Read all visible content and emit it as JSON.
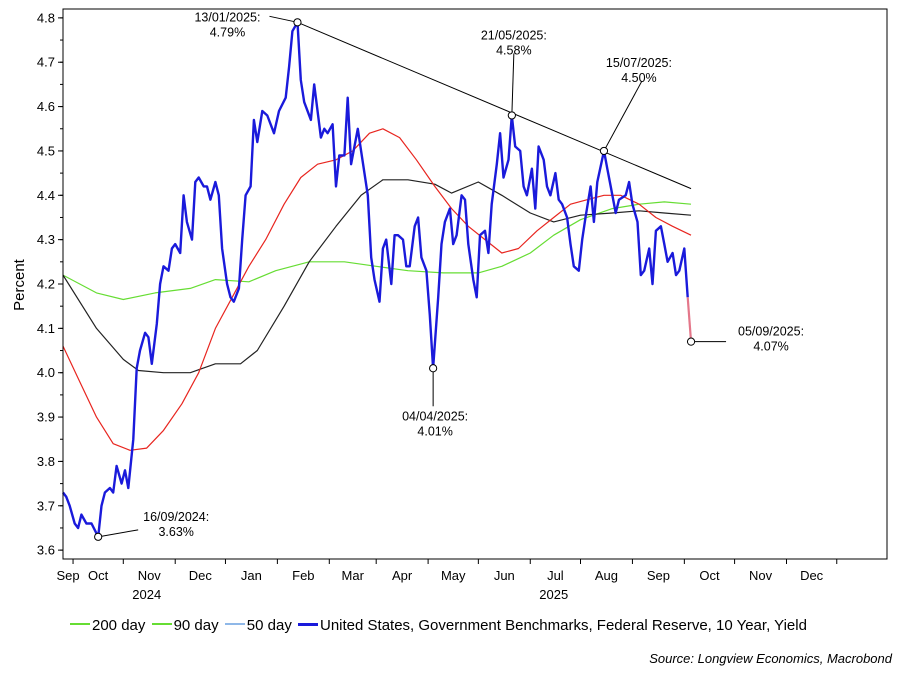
{
  "chart_data": {
    "type": "line",
    "title": "",
    "ylabel": "Percent",
    "ylim": [
      3.58,
      4.82
    ],
    "yticks": [
      "3.6",
      "3.7",
      "3.8",
      "3.9",
      "4.0",
      "4.1",
      "4.2",
      "4.3",
      "4.4",
      "4.5",
      "4.6",
      "4.7",
      "4.8"
    ],
    "xlim": [
      "2024-08-26",
      "2025-12-31"
    ],
    "month_labels": [
      "Sep",
      "Oct",
      "Nov",
      "Dec",
      "Jan",
      "Feb",
      "Mar",
      "Apr",
      "May",
      "Jun",
      "Jul",
      "Aug",
      "Sep",
      "Oct",
      "Nov",
      "Dec"
    ],
    "year_labels": [
      {
        "label": "2024",
        "center": "2024-10-15"
      },
      {
        "label": "2025",
        "center": "2025-06-15"
      }
    ],
    "grid": false,
    "legend_position": "bottom",
    "legend": [
      {
        "label": "200 day",
        "color": "#66dd33"
      },
      {
        "label": "90 day",
        "color": "#222222"
      },
      {
        "label": "50 day",
        "color": "#e8251f"
      },
      {
        "label": "United States, Government Benchmarks, Federal Reserve, 10 Year, Yield",
        "color": "#1a1adb"
      }
    ],
    "source": "Source: Longview Economics, Macrobond",
    "series": [
      {
        "key": "ma200",
        "color": "#66dd33",
        "width": 1.2,
        "points": [
          [
            "2024-08-26",
            4.22
          ],
          [
            "2024-09-15",
            4.18
          ],
          [
            "2024-10-01",
            4.165
          ],
          [
            "2024-10-20",
            4.18
          ],
          [
            "2024-11-10",
            4.19
          ],
          [
            "2024-11-25",
            4.21
          ],
          [
            "2024-12-15",
            4.205
          ],
          [
            "2024-12-31",
            4.23
          ],
          [
            "2025-01-20",
            4.25
          ],
          [
            "2025-02-10",
            4.25
          ],
          [
            "2025-03-01",
            4.24
          ],
          [
            "2025-03-20",
            4.23
          ],
          [
            "2025-04-10",
            4.225
          ],
          [
            "2025-05-01",
            4.225
          ],
          [
            "2025-05-15",
            4.24
          ],
          [
            "2025-06-01",
            4.27
          ],
          [
            "2025-06-15",
            4.31
          ],
          [
            "2025-07-01",
            4.345
          ],
          [
            "2025-07-20",
            4.37
          ],
          [
            "2025-08-05",
            4.38
          ],
          [
            "2025-08-20",
            4.385
          ],
          [
            "2025-09-05",
            4.38
          ]
        ]
      },
      {
        "key": "ma90",
        "color": "#222222",
        "width": 1.2,
        "points": [
          [
            "2024-08-26",
            4.22
          ],
          [
            "2024-09-15",
            4.1
          ],
          [
            "2024-10-01",
            4.03
          ],
          [
            "2024-10-10",
            4.005
          ],
          [
            "2024-10-25",
            4.0
          ],
          [
            "2024-11-10",
            4.0
          ],
          [
            "2024-11-25",
            4.02
          ],
          [
            "2024-12-10",
            4.02
          ],
          [
            "2024-12-20",
            4.05
          ],
          [
            "2025-01-05",
            4.15
          ],
          [
            "2025-01-20",
            4.25
          ],
          [
            "2025-02-05",
            4.33
          ],
          [
            "2025-02-20",
            4.4
          ],
          [
            "2025-03-05",
            4.435
          ],
          [
            "2025-03-20",
            4.435
          ],
          [
            "2025-04-05",
            4.425
          ],
          [
            "2025-04-15",
            4.405
          ],
          [
            "2025-05-01",
            4.43
          ],
          [
            "2025-05-15",
            4.4
          ],
          [
            "2025-06-01",
            4.36
          ],
          [
            "2025-06-15",
            4.34
          ],
          [
            "2025-07-01",
            4.355
          ],
          [
            "2025-07-20",
            4.36
          ],
          [
            "2025-08-05",
            4.365
          ],
          [
            "2025-08-20",
            4.36
          ],
          [
            "2025-09-05",
            4.355
          ]
        ]
      },
      {
        "key": "ma50",
        "color": "#e8251f",
        "width": 1.2,
        "points": [
          [
            "2024-08-26",
            4.06
          ],
          [
            "2024-09-05",
            3.98
          ],
          [
            "2024-09-15",
            3.9
          ],
          [
            "2024-09-25",
            3.84
          ],
          [
            "2024-10-05",
            3.825
          ],
          [
            "2024-10-15",
            3.83
          ],
          [
            "2024-10-25",
            3.87
          ],
          [
            "2024-11-05",
            3.93
          ],
          [
            "2024-11-15",
            4.0
          ],
          [
            "2024-11-25",
            4.1
          ],
          [
            "2024-12-05",
            4.17
          ],
          [
            "2024-12-15",
            4.24
          ],
          [
            "2024-12-25",
            4.3
          ],
          [
            "2025-01-05",
            4.38
          ],
          [
            "2025-01-15",
            4.44
          ],
          [
            "2025-01-25",
            4.47
          ],
          [
            "2025-02-05",
            4.48
          ],
          [
            "2025-02-15",
            4.5
          ],
          [
            "2025-02-25",
            4.54
          ],
          [
            "2025-03-05",
            4.55
          ],
          [
            "2025-03-15",
            4.53
          ],
          [
            "2025-03-25",
            4.48
          ],
          [
            "2025-04-05",
            4.42
          ],
          [
            "2025-04-15",
            4.37
          ],
          [
            "2025-04-25",
            4.33
          ],
          [
            "2025-05-05",
            4.3
          ],
          [
            "2025-05-15",
            4.27
          ],
          [
            "2025-05-25",
            4.28
          ],
          [
            "2025-06-05",
            4.32
          ],
          [
            "2025-06-15",
            4.35
          ],
          [
            "2025-06-25",
            4.38
          ],
          [
            "2025-07-05",
            4.39
          ],
          [
            "2025-07-15",
            4.4
          ],
          [
            "2025-07-25",
            4.4
          ],
          [
            "2025-08-05",
            4.38
          ],
          [
            "2025-08-15",
            4.35
          ],
          [
            "2025-08-25",
            4.33
          ],
          [
            "2025-09-05",
            4.31
          ]
        ]
      },
      {
        "key": "yield",
        "color": "#1a1adb",
        "width": 2.4,
        "points": [
          [
            "2024-08-26",
            3.73
          ],
          [
            "2024-08-28",
            3.72
          ],
          [
            "2024-08-30",
            3.7
          ],
          [
            "2024-09-02",
            3.66
          ],
          [
            "2024-09-04",
            3.65
          ],
          [
            "2024-09-06",
            3.68
          ],
          [
            "2024-09-09",
            3.66
          ],
          [
            "2024-09-12",
            3.66
          ],
          [
            "2024-09-16",
            3.63
          ],
          [
            "2024-09-18",
            3.7
          ],
          [
            "2024-09-20",
            3.73
          ],
          [
            "2024-09-23",
            3.74
          ],
          [
            "2024-09-25",
            3.73
          ],
          [
            "2024-09-27",
            3.79
          ],
          [
            "2024-09-30",
            3.75
          ],
          [
            "2024-10-02",
            3.78
          ],
          [
            "2024-10-04",
            3.74
          ],
          [
            "2024-10-07",
            3.85
          ],
          [
            "2024-10-09",
            4.01
          ],
          [
            "2024-10-11",
            4.05
          ],
          [
            "2024-10-14",
            4.09
          ],
          [
            "2024-10-16",
            4.08
          ],
          [
            "2024-10-18",
            4.02
          ],
          [
            "2024-10-21",
            4.11
          ],
          [
            "2024-10-23",
            4.2
          ],
          [
            "2024-10-25",
            4.24
          ],
          [
            "2024-10-28",
            4.23
          ],
          [
            "2024-10-30",
            4.28
          ],
          [
            "2024-11-01",
            4.29
          ],
          [
            "2024-11-04",
            4.27
          ],
          [
            "2024-11-06",
            4.4
          ],
          [
            "2024-11-08",
            4.34
          ],
          [
            "2024-11-11",
            4.3
          ],
          [
            "2024-11-13",
            4.43
          ],
          [
            "2024-11-15",
            4.44
          ],
          [
            "2024-11-18",
            4.42
          ],
          [
            "2024-11-20",
            4.42
          ],
          [
            "2024-11-22",
            4.39
          ],
          [
            "2024-11-25",
            4.43
          ],
          [
            "2024-11-27",
            4.4
          ],
          [
            "2024-11-29",
            4.28
          ],
          [
            "2024-12-02",
            4.2
          ],
          [
            "2024-12-04",
            4.17
          ],
          [
            "2024-12-06",
            4.16
          ],
          [
            "2024-12-09",
            4.19
          ],
          [
            "2024-12-11",
            4.3
          ],
          [
            "2024-12-13",
            4.4
          ],
          [
            "2024-12-16",
            4.42
          ],
          [
            "2024-12-18",
            4.57
          ],
          [
            "2024-12-20",
            4.52
          ],
          [
            "2024-12-23",
            4.59
          ],
          [
            "2024-12-26",
            4.58
          ],
          [
            "2024-12-30",
            4.54
          ],
          [
            "2025-01-02",
            4.59
          ],
          [
            "2025-01-06",
            4.62
          ],
          [
            "2025-01-08",
            4.69
          ],
          [
            "2025-01-10",
            4.77
          ],
          [
            "2025-01-13",
            4.79
          ],
          [
            "2025-01-15",
            4.66
          ],
          [
            "2025-01-17",
            4.61
          ],
          [
            "2025-01-21",
            4.57
          ],
          [
            "2025-01-23",
            4.65
          ],
          [
            "2025-01-27",
            4.53
          ],
          [
            "2025-01-29",
            4.55
          ],
          [
            "2025-01-31",
            4.54
          ],
          [
            "2025-02-03",
            4.56
          ],
          [
            "2025-02-05",
            4.42
          ],
          [
            "2025-02-07",
            4.49
          ],
          [
            "2025-02-10",
            4.49
          ],
          [
            "2025-02-12",
            4.62
          ],
          [
            "2025-02-14",
            4.47
          ],
          [
            "2025-02-18",
            4.55
          ],
          [
            "2025-02-20",
            4.5
          ],
          [
            "2025-02-24",
            4.4
          ],
          [
            "2025-02-26",
            4.26
          ],
          [
            "2025-02-28",
            4.21
          ],
          [
            "2025-03-03",
            4.16
          ],
          [
            "2025-03-05",
            4.28
          ],
          [
            "2025-03-07",
            4.3
          ],
          [
            "2025-03-10",
            4.2
          ],
          [
            "2025-03-12",
            4.31
          ],
          [
            "2025-03-14",
            4.31
          ],
          [
            "2025-03-17",
            4.3
          ],
          [
            "2025-03-19",
            4.24
          ],
          [
            "2025-03-21",
            4.24
          ],
          [
            "2025-03-24",
            4.33
          ],
          [
            "2025-03-26",
            4.35
          ],
          [
            "2025-03-28",
            4.26
          ],
          [
            "2025-03-31",
            4.23
          ],
          [
            "2025-04-02",
            4.13
          ],
          [
            "2025-04-04",
            4.01
          ],
          [
            "2025-04-07",
            4.17
          ],
          [
            "2025-04-09",
            4.29
          ],
          [
            "2025-04-11",
            4.34
          ],
          [
            "2025-04-14",
            4.37
          ],
          [
            "2025-04-16",
            4.29
          ],
          [
            "2025-04-18",
            4.31
          ],
          [
            "2025-04-21",
            4.4
          ],
          [
            "2025-04-23",
            4.39
          ],
          [
            "2025-04-25",
            4.29
          ],
          [
            "2025-04-28",
            4.21
          ],
          [
            "2025-04-30",
            4.17
          ],
          [
            "2025-05-02",
            4.31
          ],
          [
            "2025-05-05",
            4.32
          ],
          [
            "2025-05-07",
            4.27
          ],
          [
            "2025-05-09",
            4.38
          ],
          [
            "2025-05-12",
            4.47
          ],
          [
            "2025-05-14",
            4.54
          ],
          [
            "2025-05-16",
            4.44
          ],
          [
            "2025-05-19",
            4.48
          ],
          [
            "2025-05-21",
            4.58
          ],
          [
            "2025-05-23",
            4.51
          ],
          [
            "2025-05-26",
            4.5
          ],
          [
            "2025-05-28",
            4.42
          ],
          [
            "2025-05-30",
            4.4
          ],
          [
            "2025-06-02",
            4.46
          ],
          [
            "2025-06-04",
            4.37
          ],
          [
            "2025-06-06",
            4.51
          ],
          [
            "2025-06-09",
            4.48
          ],
          [
            "2025-06-11",
            4.42
          ],
          [
            "2025-06-13",
            4.4
          ],
          [
            "2025-06-16",
            4.45
          ],
          [
            "2025-06-18",
            4.39
          ],
          [
            "2025-06-20",
            4.38
          ],
          [
            "2025-06-23",
            4.35
          ],
          [
            "2025-06-25",
            4.29
          ],
          [
            "2025-06-27",
            4.24
          ],
          [
            "2025-06-30",
            4.23
          ],
          [
            "2025-07-02",
            4.3
          ],
          [
            "2025-07-04",
            4.35
          ],
          [
            "2025-07-07",
            4.42
          ],
          [
            "2025-07-09",
            4.34
          ],
          [
            "2025-07-11",
            4.43
          ],
          [
            "2025-07-15",
            4.5
          ],
          [
            "2025-07-17",
            4.46
          ],
          [
            "2025-07-19",
            4.42
          ],
          [
            "2025-07-22",
            4.36
          ],
          [
            "2025-07-24",
            4.39
          ],
          [
            "2025-07-28",
            4.4
          ],
          [
            "2025-07-30",
            4.43
          ],
          [
            "2025-08-01",
            4.38
          ],
          [
            "2025-08-04",
            4.34
          ],
          [
            "2025-08-06",
            4.22
          ],
          [
            "2025-08-08",
            4.23
          ],
          [
            "2025-08-11",
            4.28
          ],
          [
            "2025-08-13",
            4.2
          ],
          [
            "2025-08-15",
            4.32
          ],
          [
            "2025-08-18",
            4.33
          ],
          [
            "2025-08-20",
            4.29
          ],
          [
            "2025-08-22",
            4.25
          ],
          [
            "2025-08-25",
            4.27
          ],
          [
            "2025-08-27",
            4.22
          ],
          [
            "2025-08-29",
            4.23
          ],
          [
            "2025-09-01",
            4.28
          ],
          [
            "2025-09-03",
            4.17
          ]
        ]
      }
    ],
    "last_segment": {
      "color": "#e4778a",
      "from": [
        "2025-09-03",
        4.17
      ],
      "to": [
        "2025-09-05",
        4.07
      ]
    },
    "trendline": {
      "color": "#000000",
      "from": [
        "2025-01-13",
        4.79
      ],
      "to": [
        "2025-09-05",
        4.415
      ]
    },
    "annotations": [
      {
        "date": "2025-01-13",
        "value": 4.79,
        "date_label": "13/01/2025:",
        "value_label": "4.79%",
        "placement": "upper-left"
      },
      {
        "date": "2025-05-21",
        "value": 4.58,
        "date_label": "21/05/2025:",
        "value_label": "4.58%",
        "placement": "above"
      },
      {
        "date": "2025-07-15",
        "value": 4.5,
        "date_label": "15/07/2025:",
        "value_label": "4.50%",
        "placement": "upper-right"
      },
      {
        "date": "2025-04-04",
        "value": 4.01,
        "date_label": "04/04/2025:",
        "value_label": "4.01%",
        "placement": "below"
      },
      {
        "date": "2024-09-16",
        "value": 3.63,
        "date_label": "16/09/2024:",
        "value_label": "3.63%",
        "placement": "upper-right"
      },
      {
        "date": "2025-09-05",
        "value": 4.07,
        "date_label": "05/09/2025:",
        "value_label": "4.07%",
        "placement": "right"
      }
    ]
  }
}
